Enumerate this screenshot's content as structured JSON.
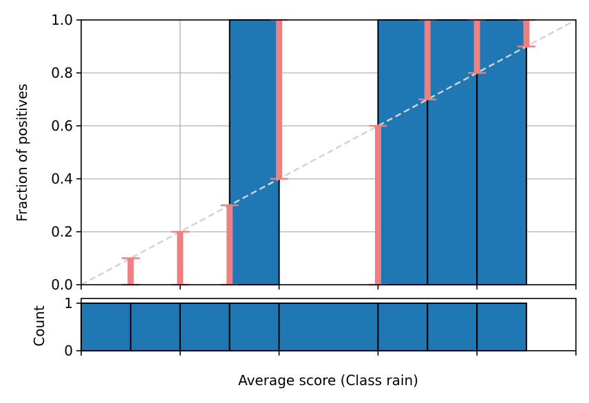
{
  "chart_data": [
    {
      "type": "bar",
      "panel": "reliability",
      "xlabel": "",
      "ylabel": "Fraction of positives",
      "ylim": [
        0.0,
        1.0
      ],
      "xlim": [
        0.0,
        1.0
      ],
      "grid": true,
      "yticks": [
        "0.0",
        "0.2",
        "0.4",
        "0.6",
        "0.8",
        "1.0"
      ],
      "xtick_values": [
        0.0,
        0.2,
        0.4,
        0.6,
        0.8,
        1.0
      ],
      "bars": [
        {
          "x0": 0.0,
          "x1": 0.1,
          "value": 0.0
        },
        {
          "x0": 0.1,
          "x1": 0.2,
          "value": 0.0
        },
        {
          "x0": 0.2,
          "x1": 0.3,
          "value": 0.0
        },
        {
          "x0": 0.3,
          "x1": 0.4,
          "value": 1.0
        },
        {
          "x0": 0.4,
          "x1": 0.6,
          "value": 0.0
        },
        {
          "x0": 0.6,
          "x1": 0.7,
          "value": 1.0
        },
        {
          "x0": 0.7,
          "x1": 0.8,
          "value": 1.0
        },
        {
          "x0": 0.8,
          "x1": 0.9,
          "value": 1.0
        }
      ],
      "error_bars": [
        {
          "x": 0.1,
          "low": 0.0,
          "high": 0.1
        },
        {
          "x": 0.2,
          "low": 0.0,
          "high": 0.2
        },
        {
          "x": 0.3,
          "low": 0.0,
          "high": 0.3
        },
        {
          "x": 0.4,
          "low": 0.4,
          "high": 1.0
        },
        {
          "x": 0.6,
          "low": 0.0,
          "high": 0.6
        },
        {
          "x": 0.7,
          "low": 0.7,
          "high": 1.0
        },
        {
          "x": 0.8,
          "low": 0.8,
          "high": 1.0
        },
        {
          "x": 0.9,
          "low": 0.9,
          "high": 1.0
        }
      ],
      "diagonal": {
        "x": [
          0.0,
          1.0
        ],
        "y": [
          0.0,
          1.0
        ]
      }
    },
    {
      "type": "bar",
      "panel": "histogram",
      "xlabel": "Average score (Class rain)",
      "ylabel": "Count",
      "ylim": [
        0,
        1.1
      ],
      "yticks": [
        "0",
        "1"
      ],
      "xtick_values": [
        0.0,
        0.2,
        0.4,
        0.6,
        0.8,
        1.0
      ],
      "bars": [
        {
          "x0": 0.0,
          "x1": 0.1,
          "value": 1
        },
        {
          "x0": 0.1,
          "x1": 0.2,
          "value": 1
        },
        {
          "x0": 0.2,
          "x1": 0.3,
          "value": 1
        },
        {
          "x0": 0.3,
          "x1": 0.4,
          "value": 1
        },
        {
          "x0": 0.4,
          "x1": 0.6,
          "value": 1
        },
        {
          "x0": 0.6,
          "x1": 0.7,
          "value": 1
        },
        {
          "x0": 0.7,
          "x1": 0.8,
          "value": 1
        },
        {
          "x0": 0.8,
          "x1": 0.9,
          "value": 1
        }
      ]
    }
  ],
  "colors": {
    "bar_fill": "#1f77b4",
    "bar_edge": "#000000",
    "error_bar": "#f08080",
    "diagonal": "#d3d3d3",
    "grid": "#b0b0b0"
  }
}
